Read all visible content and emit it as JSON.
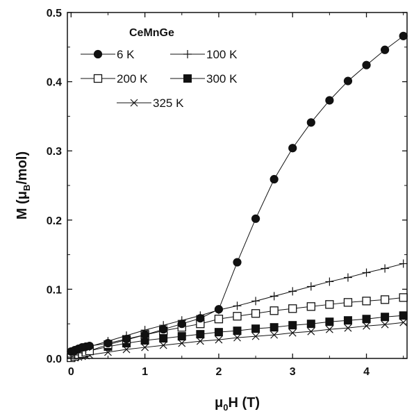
{
  "chart_data": {
    "type": "line",
    "title": "",
    "legend_title": "CeMnGe",
    "legend_placement": "top-left",
    "xlabel": {
      "main": "μ",
      "sub": "0",
      "rest": "H (T)"
    },
    "ylabel": {
      "main": "M (μ",
      "sub": "B",
      "rest": "/mol)"
    },
    "xlim": [
      -0.05,
      4.55
    ],
    "ylim": [
      0,
      0.5
    ],
    "xticks": [
      0,
      1,
      2,
      3,
      4
    ],
    "xtick_labels": [
      "0",
      "1",
      "2",
      "3",
      "4"
    ],
    "yticks": [
      0.0,
      0.1,
      0.2,
      0.3,
      0.4,
      0.5
    ],
    "ytick_labels": [
      "0.0",
      "0.1",
      "0.2",
      "0.3",
      "0.4",
      "0.5"
    ],
    "grid": false,
    "series": [
      {
        "name": "6 K",
        "marker": "filled-circle",
        "x": [
          0,
          0.05,
          0.1,
          0.15,
          0.2,
          0.25,
          0.5,
          0.75,
          1.0,
          1.25,
          1.5,
          1.75,
          2.0,
          2.25,
          2.5,
          2.75,
          3.0,
          3.25,
          3.5,
          3.75,
          4.0,
          4.25,
          4.5
        ],
        "y": [
          0.01,
          0.012,
          0.014,
          0.016,
          0.017,
          0.018,
          0.022,
          0.028,
          0.034,
          0.042,
          0.05,
          0.058,
          0.071,
          0.139,
          0.202,
          0.259,
          0.304,
          0.341,
          0.373,
          0.401,
          0.424,
          0.446,
          0.466
        ]
      },
      {
        "name": "100 K",
        "marker": "plus",
        "x": [
          0,
          0.05,
          0.1,
          0.15,
          0.2,
          0.25,
          0.5,
          0.75,
          1.0,
          1.25,
          1.5,
          1.75,
          2.0,
          2.25,
          2.5,
          2.75,
          3.0,
          3.25,
          3.5,
          3.75,
          4.0,
          4.25,
          4.5
        ],
        "y": [
          0.002,
          0.005,
          0.008,
          0.011,
          0.014,
          0.017,
          0.025,
          0.033,
          0.041,
          0.048,
          0.055,
          0.062,
          0.07,
          0.076,
          0.083,
          0.09,
          0.097,
          0.104,
          0.111,
          0.117,
          0.124,
          0.13,
          0.137
        ]
      },
      {
        "name": "200 K",
        "marker": "open-square",
        "x": [
          0,
          0.05,
          0.1,
          0.15,
          0.2,
          0.25,
          0.5,
          0.75,
          1.0,
          1.25,
          1.5,
          1.75,
          2.0,
          2.25,
          2.5,
          2.75,
          3.0,
          3.25,
          3.5,
          3.75,
          4.0,
          4.25,
          4.5
        ],
        "y": [
          0.001,
          0.003,
          0.005,
          0.007,
          0.009,
          0.011,
          0.02,
          0.027,
          0.034,
          0.04,
          0.045,
          0.05,
          0.057,
          0.061,
          0.065,
          0.069,
          0.072,
          0.075,
          0.078,
          0.081,
          0.083,
          0.085,
          0.088
        ]
      },
      {
        "name": "300 K",
        "marker": "filled-square",
        "x": [
          0,
          0.05,
          0.1,
          0.15,
          0.2,
          0.25,
          0.5,
          0.75,
          1.0,
          1.25,
          1.5,
          1.75,
          2.0,
          2.25,
          2.5,
          2.75,
          3.0,
          3.25,
          3.5,
          3.75,
          4.0,
          4.25,
          4.5
        ],
        "y": [
          0.001,
          0.003,
          0.005,
          0.007,
          0.009,
          0.011,
          0.017,
          0.022,
          0.026,
          0.029,
          0.032,
          0.035,
          0.038,
          0.04,
          0.043,
          0.045,
          0.048,
          0.05,
          0.053,
          0.055,
          0.057,
          0.06,
          0.062
        ]
      },
      {
        "name": "325 K",
        "marker": "cross",
        "x": [
          0,
          0.05,
          0.1,
          0.15,
          0.2,
          0.25,
          0.5,
          0.75,
          1.0,
          1.25,
          1.5,
          1.75,
          2.0,
          2.25,
          2.5,
          2.75,
          3.0,
          3.25,
          3.5,
          3.75,
          4.0,
          4.25,
          4.5
        ],
        "y": [
          0.0,
          0.001,
          0.002,
          0.003,
          0.004,
          0.005,
          0.009,
          0.013,
          0.016,
          0.019,
          0.022,
          0.025,
          0.027,
          0.03,
          0.032,
          0.034,
          0.037,
          0.039,
          0.042,
          0.044,
          0.047,
          0.049,
          0.052
        ]
      }
    ]
  }
}
